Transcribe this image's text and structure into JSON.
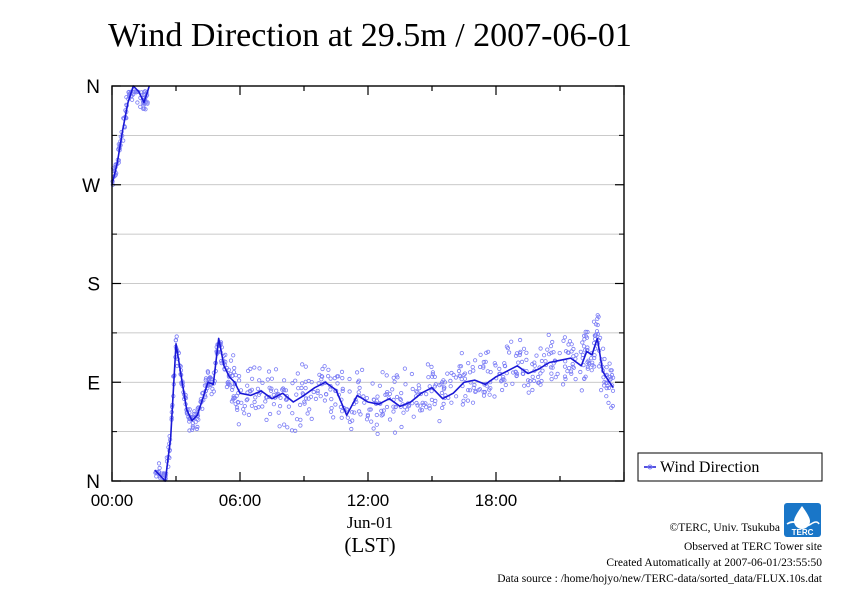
{
  "chart_data": {
    "type": "scatter",
    "title": "Wind Direction at 29.5m / 2007-06-01",
    "xlabel": "Jun-01",
    "xlabel_sub": "(LST)",
    "ylabel": "",
    "x_unit": "hours LST",
    "xlim": [
      0,
      24
    ],
    "ylim": [
      0,
      360
    ],
    "xticks": [
      {
        "value": 0,
        "label": "00:00"
      },
      {
        "value": 6,
        "label": "06:00"
      },
      {
        "value": 12,
        "label": "12:00"
      },
      {
        "value": 18,
        "label": "18:00"
      }
    ],
    "yticks": [
      {
        "value": 0,
        "label": "N"
      },
      {
        "value": 90,
        "label": "E"
      },
      {
        "value": 180,
        "label": "S"
      },
      {
        "value": 270,
        "label": "W"
      },
      {
        "value": 360,
        "label": "N"
      }
    ],
    "grid": true,
    "legend": {
      "position": "right",
      "entries": [
        "Wind Direction"
      ]
    },
    "colors": {
      "points": "#7a7cf5",
      "line": "#1a18d6"
    },
    "series": [
      {
        "name": "Wind Direction",
        "x": [
          0.0,
          0.25,
          0.5,
          0.75,
          1.0,
          1.25,
          1.5,
          1.75,
          2.0,
          2.25,
          2.5,
          2.75,
          3.0,
          3.25,
          3.5,
          3.75,
          4.0,
          4.25,
          4.5,
          4.75,
          5.0,
          5.25,
          5.5,
          5.75,
          6.0,
          6.5,
          7.0,
          7.5,
          8.0,
          8.5,
          9.0,
          9.5,
          10.0,
          10.5,
          11.0,
          11.5,
          12.0,
          12.5,
          13.0,
          13.5,
          14.0,
          14.5,
          15.0,
          15.5,
          16.0,
          16.5,
          17.0,
          17.5,
          18.0,
          18.5,
          19.0,
          19.5,
          20.0,
          20.5,
          21.0,
          21.5,
          22.0,
          22.25,
          22.5,
          22.75,
          23.0,
          23.25,
          23.5
        ],
        "y": [
          270,
          290,
          320,
          345,
          360,
          355,
          345,
          360,
          10,
          5,
          0,
          40,
          125,
          95,
          65,
          55,
          60,
          75,
          90,
          88,
          130,
          105,
          95,
          90,
          80,
          78,
          82,
          75,
          80,
          72,
          78,
          85,
          90,
          83,
          60,
          78,
          72,
          70,
          75,
          68,
          72,
          80,
          85,
          75,
          80,
          90,
          92,
          88,
          95,
          100,
          105,
          98,
          102,
          108,
          110,
          112,
          105,
          118,
          115,
          130,
          100,
          92,
          85
        ]
      }
    ],
    "scatter_points": {
      "note": "",
      "spread": 18
    }
  },
  "credits": {
    "org": "©TERC, Univ. Tsukuba",
    "observed": "Observed at TERC Tower site",
    "created": "Created Automatically at 2007-06-01/23:55:50",
    "source": "Data source : /home/hojyo/new/TERC-data/sorted_data/FLUX.10s.dat"
  },
  "logo": {
    "text": "TERC",
    "color": "#1976c8"
  }
}
